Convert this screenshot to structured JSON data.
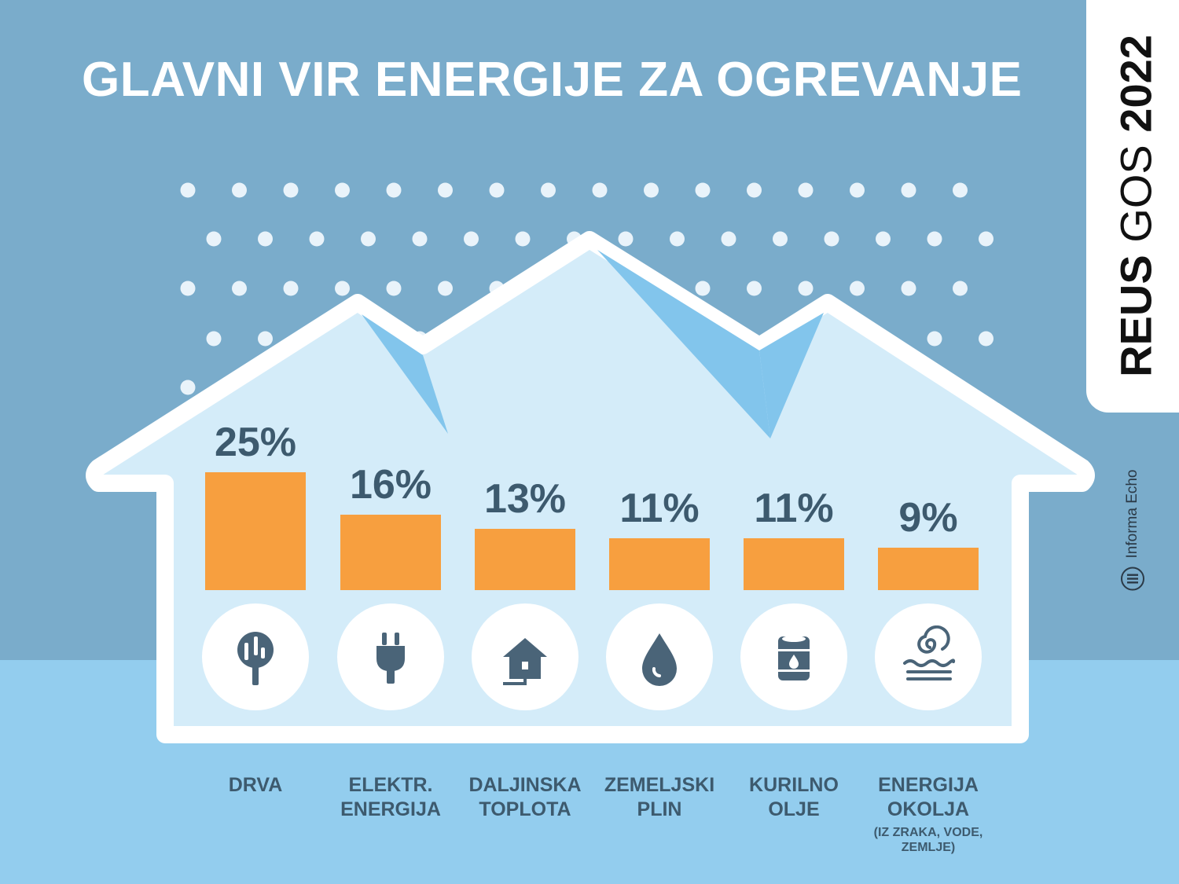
{
  "title": "GLAVNI VIR ENERGIJE ZA OGREVANJE",
  "badge": {
    "bold": "REUS",
    "light": "GOS",
    "year": "2022"
  },
  "publisher": {
    "name": "Informa Echo",
    "icon": "informa-echo-logo-icon"
  },
  "colors": {
    "sky": "#7aaccb",
    "ground": "#93cdee",
    "house": "#d4ecf9",
    "roof_shadow": "#82c5ec",
    "bar": "#f79f3f",
    "text": "#3d5a6e",
    "icon": "#4a6478"
  },
  "chart_data": {
    "type": "bar",
    "title": "GLAVNI VIR ENERGIJE ZA OGREVANJE",
    "unit": "%",
    "categories": [
      "DRVA",
      "ELEKTR. ENERGIJA",
      "DALJINSKA TOPLOTA",
      "ZEMELJSKI PLIN",
      "KURILNO OLJE",
      "ENERGIJA OKOLJA"
    ],
    "values": [
      25,
      16,
      13,
      11,
      11,
      9
    ],
    "value_labels": [
      "25%",
      "16%",
      "13%",
      "11%",
      "11%",
      "9%"
    ],
    "category_lines": [
      [
        "DRVA"
      ],
      [
        "ELEKTR.",
        "ENERGIJA"
      ],
      [
        "DALJINSKA",
        "TOPLOTA"
      ],
      [
        "ZEMELJSKI",
        "PLIN"
      ],
      [
        "KURILNO",
        "OLJE"
      ],
      [
        "ENERGIJA",
        "OKOLJA"
      ]
    ],
    "category_notes": [
      "",
      "",
      "",
      "",
      "",
      "(IZ ZRAKA, VODE, ZEMLJE)"
    ],
    "icons": [
      "tree-icon",
      "plug-icon",
      "house-icon",
      "drop-icon",
      "barrel-icon",
      "spiral-waves-icon"
    ],
    "grid": false,
    "legend": "none"
  }
}
